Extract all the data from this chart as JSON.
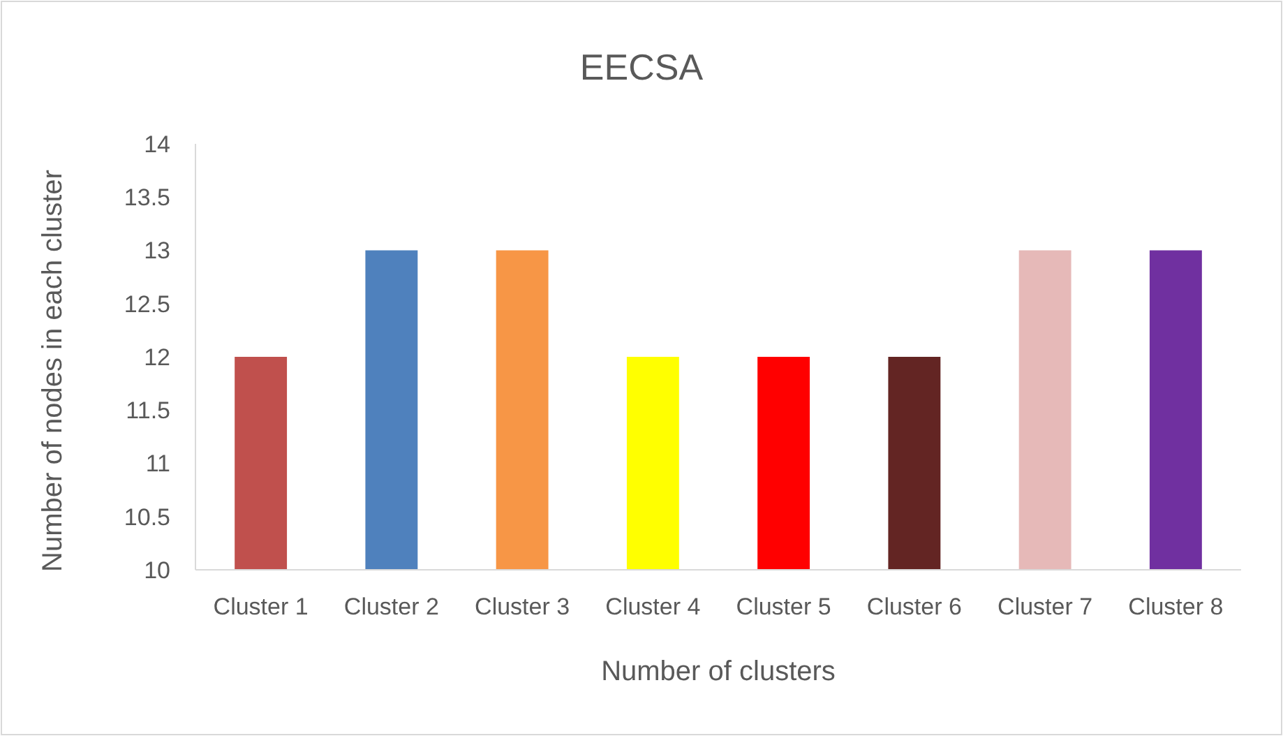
{
  "chart_data": {
    "type": "bar",
    "title": "EECSA",
    "xlabel": "Number of clusters",
    "ylabel": "Number of nodes in each cluster",
    "categories": [
      "Cluster 1",
      "Cluster 2",
      "Cluster 3",
      "Cluster 4",
      "Cluster 5",
      "Cluster 6",
      "Cluster 7",
      "Cluster 8"
    ],
    "values": [
      12,
      13,
      13,
      12,
      12,
      12,
      13,
      13
    ],
    "colors": [
      "#c0504d",
      "#4f81bd",
      "#f79646",
      "#ffff00",
      "#ff0000",
      "#632523",
      "#e6b9b8",
      "#7030a0"
    ],
    "ylim": [
      10,
      14
    ],
    "yticks": [
      10,
      10.5,
      11,
      11.5,
      12,
      12.5,
      13,
      13.5,
      14
    ],
    "grid": false
  }
}
